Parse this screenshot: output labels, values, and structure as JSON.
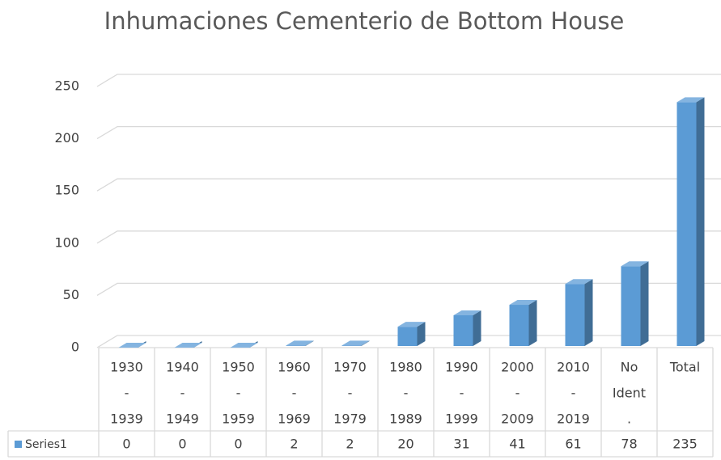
{
  "chart_data": {
    "type": "bar3d",
    "title": "Inhumaciones Cementerio de Bottom House",
    "categories": [
      [
        "1930",
        "-",
        "1939"
      ],
      [
        "1940",
        "-",
        "1949"
      ],
      [
        "1950",
        "-",
        "1959"
      ],
      [
        "1960",
        "-",
        "1969"
      ],
      [
        "1970",
        "-",
        "1979"
      ],
      [
        "1980",
        "-",
        "1989"
      ],
      [
        "1990",
        "-",
        "1999"
      ],
      [
        "2000",
        "-",
        "2009"
      ],
      [
        "2010",
        "-",
        "2019"
      ],
      [
        "No",
        "Ident",
        "."
      ],
      [
        "Total"
      ]
    ],
    "series": [
      {
        "name": "Series1",
        "color": "#5b9bd5",
        "values": [
          0,
          0,
          0,
          2,
          2,
          20,
          31,
          41,
          61,
          78,
          235
        ]
      }
    ],
    "ylim": [
      0,
      250
    ],
    "yticks": [
      0,
      50,
      100,
      150,
      200,
      250
    ],
    "grid": true,
    "data_table": true
  }
}
